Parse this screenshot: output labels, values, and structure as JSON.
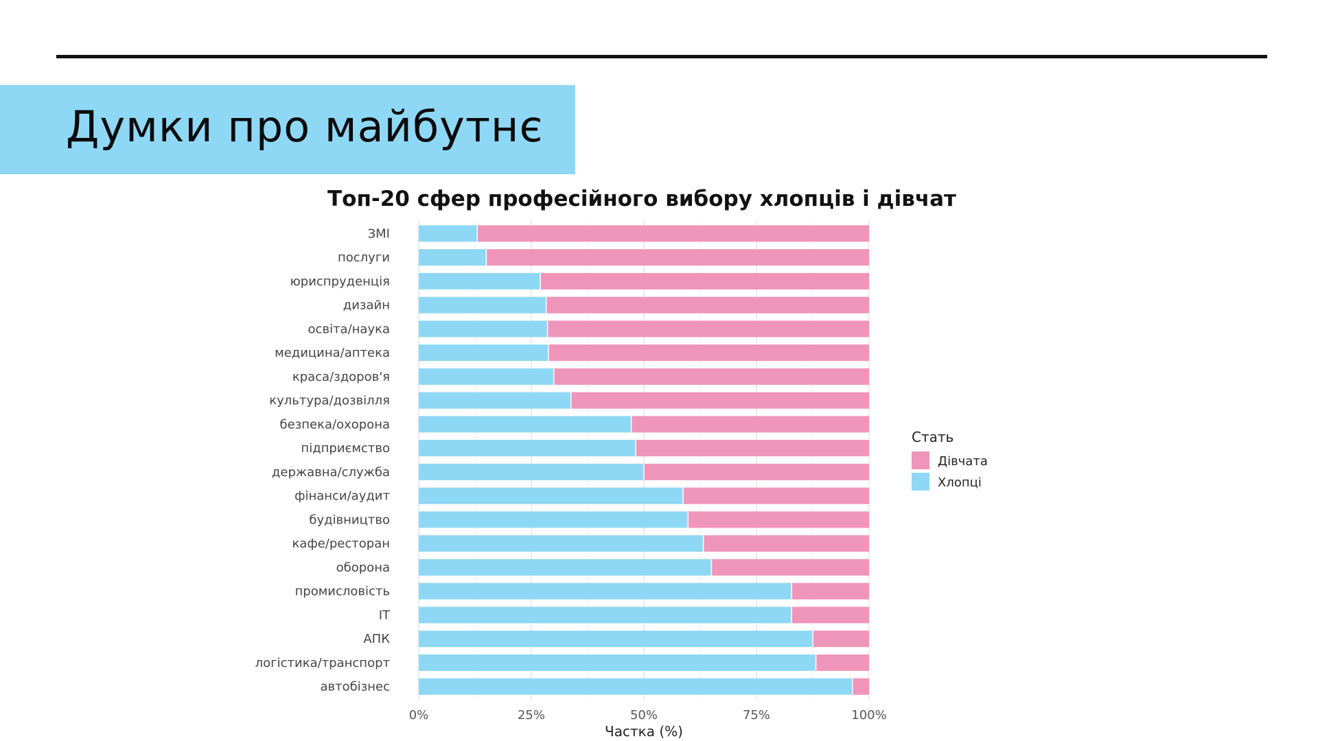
{
  "slide": {
    "title": "Думки про майбутнє"
  },
  "colors": {
    "girls": "#f095ba",
    "boys": "#8fd8f5",
    "title_band": "#8fd8f5",
    "grid": "#e6e6e6"
  },
  "chart_data": {
    "type": "bar",
    "orientation": "horizontal",
    "stacked": true,
    "title": "Топ-20 сфер професійного вибору хлопців і дівчат",
    "xlabel": "Частка (%)",
    "ylabel": "",
    "xlim": [
      0,
      100
    ],
    "x_ticks": [
      "0%",
      "25%",
      "50%",
      "75%",
      "100%"
    ],
    "x_tick_values": [
      0,
      25,
      50,
      75,
      100
    ],
    "grid": true,
    "legend": {
      "title": "Стать",
      "placement": "right",
      "entries": [
        "Дівчата",
        "Хлопці"
      ]
    },
    "categories": [
      "ЗМІ",
      "послуги",
      "юриспруденція",
      "дизайн",
      "освіта/наука",
      "медицина/аптека",
      "краса/здоров'я",
      "культура/дозвілля",
      "безпека/охорона",
      "підприємство",
      "державна/служба",
      "фінанси/аудит",
      "будівництво",
      "кафе/ресторан",
      "оборона",
      "промисловість",
      "IT",
      "АПК",
      "логістика/транспорт",
      "автобізнес"
    ],
    "series": [
      {
        "name": "Хлопці",
        "values": [
          13,
          15,
          27,
          28.3,
          28.6,
          28.8,
          30,
          33.8,
          47.2,
          48.2,
          50,
          58.7,
          59.8,
          63.2,
          65,
          82.8,
          82.8,
          87.5,
          88.2,
          96.3
        ]
      },
      {
        "name": "Дівчата",
        "values": [
          87,
          85,
          73,
          71.7,
          71.4,
          71.2,
          70,
          66.2,
          52.8,
          51.8,
          50,
          41.3,
          40.2,
          36.8,
          35,
          17.2,
          17.2,
          12.5,
          11.8,
          3.7
        ]
      }
    ]
  }
}
